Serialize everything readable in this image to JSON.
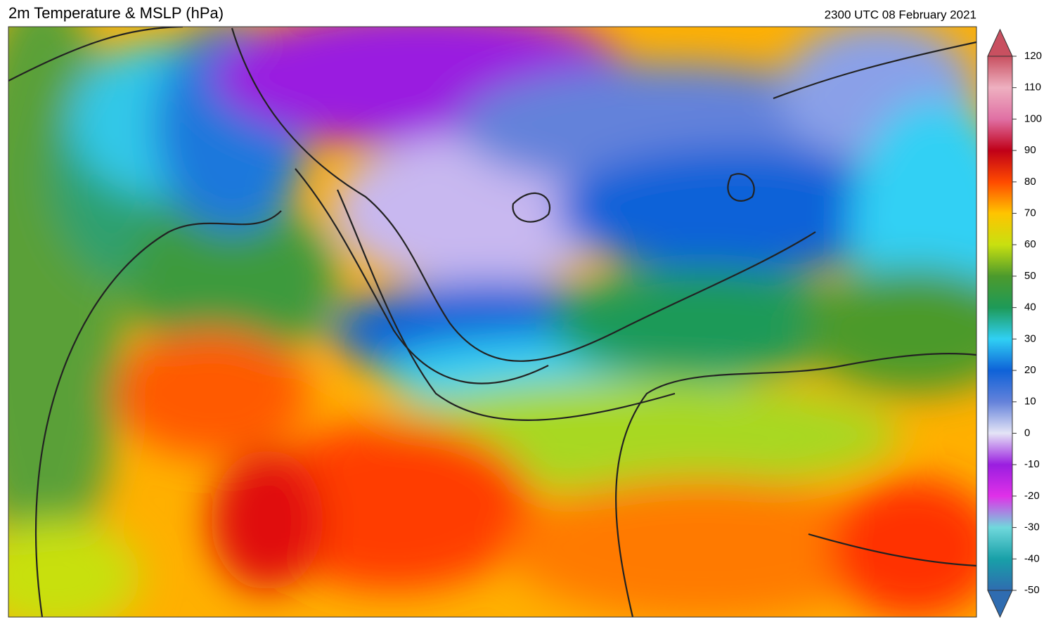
{
  "header": {
    "title": "2m Temperature & MSLP (hPa)",
    "timestamp": "2300 UTC 08 February 2021"
  },
  "colorbar": {
    "ylim": [
      -50,
      120
    ],
    "ticks": [
      -50,
      -40,
      -30,
      -20,
      -10,
      0,
      10,
      20,
      30,
      40,
      50,
      60,
      70,
      80,
      90,
      100,
      110,
      120
    ],
    "colors": [
      "#2f6cb0",
      "#18a0a8",
      "#70d8dc",
      "#e030e8",
      "#9a1ee0",
      "#e4e4f6",
      "#6482da",
      "#0e62d8",
      "#30d0f4",
      "#1e9a58",
      "#4c9a2c",
      "#c8e010",
      "#ffc400",
      "#ff4a00",
      "#c00018",
      "#e070a4",
      "#eeb0c0",
      "#c85060"
    ]
  }
}
